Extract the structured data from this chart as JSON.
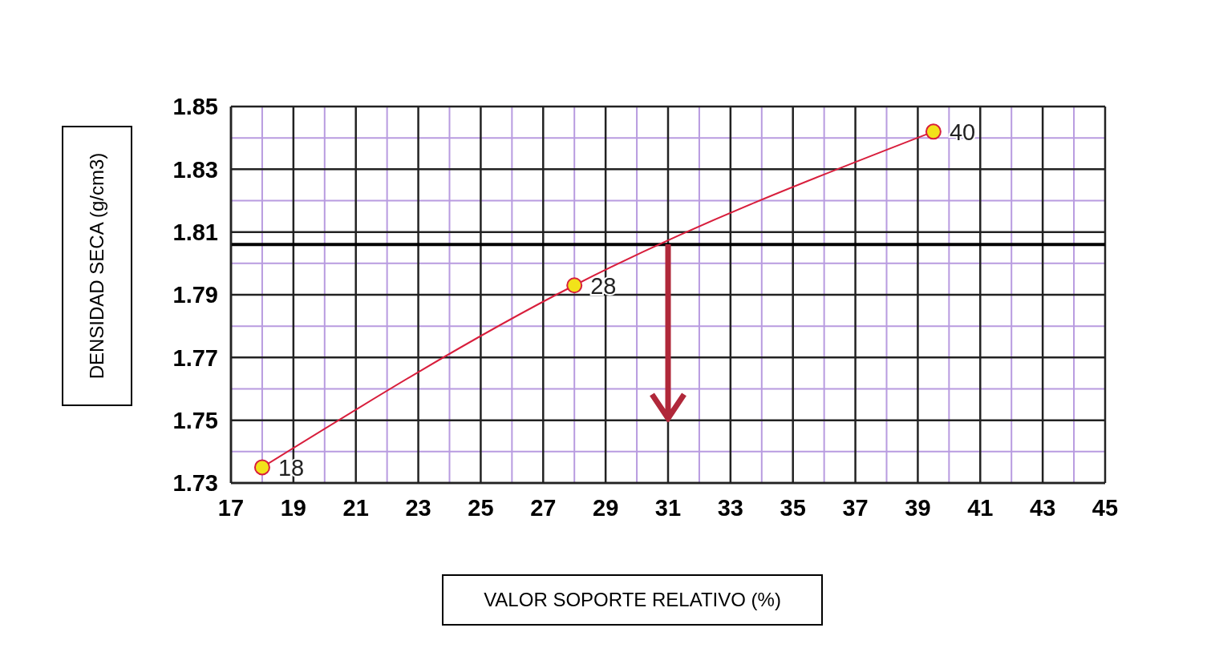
{
  "chart_data": {
    "type": "line",
    "xlabel": "VALOR SOPORTE RELATIVO (%)",
    "ylabel": "DENSIDAD SECA (g/cm3)",
    "x": [
      18,
      28,
      39.5
    ],
    "series": [
      {
        "color": "#d81e3c",
        "values": [
          1.735,
          1.793,
          1.842
        ]
      }
    ],
    "annotations": [
      {
        "text": "18",
        "x": 18,
        "y": 1.735
      },
      {
        "text": "28",
        "x": 28,
        "y": 1.793
      },
      {
        "text": "40",
        "x": 39.5,
        "y": 1.842
      }
    ],
    "marker": "circle",
    "line_style": "solid",
    "grid": true,
    "legend": false,
    "xlim": [
      17,
      45
    ],
    "xticks": [
      17,
      {
        "value": 18,
        "label": null
      },
      19,
      {
        "value": 20,
        "label": null
      },
      21,
      {
        "value": 22,
        "label": null
      },
      23,
      {
        "value": 24,
        "label": null
      },
      25,
      {
        "value": 26,
        "label": null
      },
      27,
      {
        "value": 28,
        "label": null
      },
      29,
      {
        "value": 30,
        "label": null
      },
      31,
      {
        "value": 32,
        "label": null
      },
      33,
      {
        "value": 34,
        "label": null
      },
      35,
      {
        "value": 36,
        "label": null
      },
      37,
      {
        "value": 38,
        "label": null
      },
      39,
      {
        "value": 40,
        "label": null
      },
      41,
      {
        "value": 42,
        "label": null
      },
      43,
      {
        "value": 44,
        "label": null
      },
      45
    ],
    "ylim": [
      1.73,
      1.85
    ],
    "yticks": [
      1.73,
      {
        "value": 1.74,
        "label": null
      },
      1.75,
      {
        "value": 1.76,
        "label": null
      },
      1.77,
      {
        "value": 1.78,
        "label": null
      },
      1.79,
      {
        "value": 1.8,
        "label": null
      },
      1.81,
      {
        "value": 1.82,
        "label": null
      },
      1.83,
      {
        "value": 1.84,
        "label": null
      },
      1.85
    ],
    "ref_lines": [
      {
        "axis": "y",
        "value": 1.806,
        "color": "#000000"
      }
    ]
  }
}
